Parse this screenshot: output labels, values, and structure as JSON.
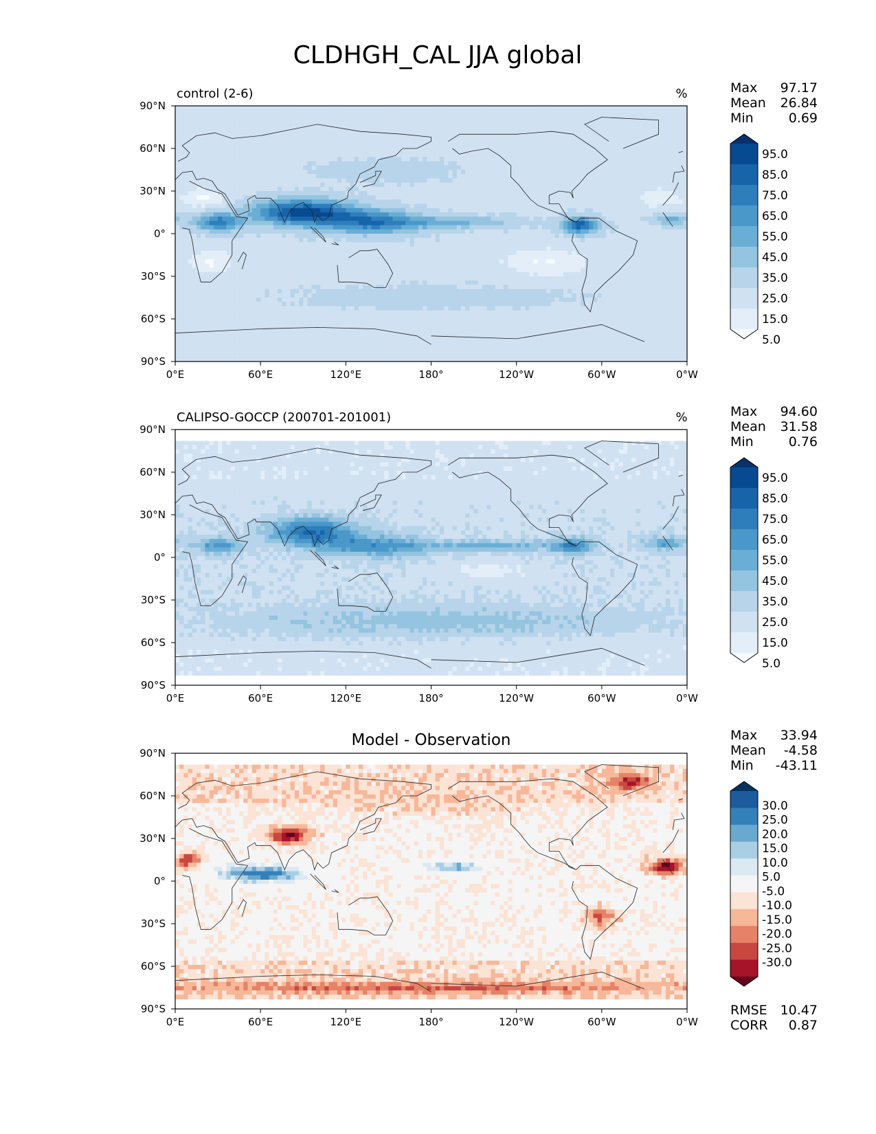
{
  "figure": {
    "title": "CLDHGH_CAL JJA global"
  },
  "axis_ticks": {
    "x": [
      "0°E",
      "60°E",
      "120°E",
      "180°",
      "120°W",
      "60°W",
      "0°W"
    ],
    "y": [
      "90°N",
      "60°N",
      "30°N",
      "0°",
      "30°S",
      "60°S",
      "90°S"
    ]
  },
  "colors": {
    "blues": [
      "#f7fbff",
      "#e3eef9",
      "#d0e1f2",
      "#b7d4ea",
      "#94c4df",
      "#6aaed6",
      "#4a98c9",
      "#2e7ebc",
      "#1764ab",
      "#084a91",
      "#08306b"
    ],
    "diff": [
      "#67001f",
      "#a51429",
      "#c94741",
      "#e58267",
      "#f7b799",
      "#fbe3d5",
      "#f5f5f5",
      "#dbe9f2",
      "#a9cfe5",
      "#69a8cf",
      "#3480b9",
      "#1b5b9e",
      "#053061"
    ]
  },
  "panels": [
    {
      "title_left": "control (2-6)",
      "title_center": "",
      "units": "%",
      "stats": [
        {
          "label": "Max",
          "value": "97.17"
        },
        {
          "label": "Mean",
          "value": "26.84"
        },
        {
          "label": "Min",
          "value": "0.69"
        }
      ],
      "colorbar_labels": [
        "95.0",
        "85.0",
        "75.0",
        "65.0",
        "55.0",
        "45.0",
        "35.0",
        "25.0",
        "15.0",
        "5.0"
      ],
      "lat_extent": [
        -90,
        90
      ]
    },
    {
      "title_left": "CALIPSO-GOCCP (200701-201001)",
      "title_center": "",
      "units": "%",
      "stats": [
        {
          "label": "Max",
          "value": "94.60"
        },
        {
          "label": "Mean",
          "value": "31.58"
        },
        {
          "label": "Min",
          "value": "0.76"
        }
      ],
      "colorbar_labels": [
        "95.0",
        "85.0",
        "75.0",
        "65.0",
        "55.0",
        "45.0",
        "35.0",
        "25.0",
        "15.0",
        "5.0"
      ],
      "lat_extent": [
        -82,
        82
      ]
    },
    {
      "title_left": "",
      "title_center": "Model - Observation",
      "units": "",
      "stats": [
        {
          "label": "Max",
          "value": "33.94"
        },
        {
          "label": "Mean",
          "value": "-4.58"
        },
        {
          "label": "Min",
          "value": "-43.11"
        }
      ],
      "colorbar_labels": [
        "30.0",
        "25.0",
        "20.0",
        "15.0",
        "10.0",
        "5.0",
        "-5.0",
        "-10.0",
        "-15.0",
        "-20.0",
        "-25.0",
        "-30.0"
      ],
      "lat_extent": [
        -82,
        82
      ],
      "footer_stats": [
        {
          "label": "RMSE",
          "value": "10.47"
        },
        {
          "label": "CORR",
          "value": "0.87"
        }
      ]
    }
  ],
  "chart_data": [
    {
      "type": "heatmap",
      "title": "control (2-6)",
      "units": "%",
      "xlim": [
        0,
        360
      ],
      "ylim": [
        -90,
        90
      ],
      "levels": [
        5,
        15,
        25,
        35,
        45,
        55,
        65,
        75,
        85,
        95
      ],
      "stats": {
        "max": 97.17,
        "mean": 26.84,
        "min": 0.69
      },
      "features": [
        {
          "lon": 90,
          "lat": 15,
          "value": 90,
          "lon_width": 35,
          "lat_width": 9
        },
        {
          "lon": 30,
          "lat": 8,
          "value": 70,
          "lon_width": 16,
          "lat_width": 6
        },
        {
          "lon": 140,
          "lat": 8,
          "value": 70,
          "lon_width": 35,
          "lat_width": 8
        },
        {
          "lon": 200,
          "lat": 8,
          "value": 45,
          "lon_width": 40,
          "lat_width": 4
        },
        {
          "lon": 285,
          "lat": 6,
          "value": 80,
          "lon_width": 12,
          "lat_width": 6
        },
        {
          "lon": 350,
          "lat": 10,
          "value": 50,
          "lon_width": 12,
          "lat_width": 4
        },
        {
          "lon": 180,
          "lat": -45,
          "value": 30,
          "lon_width": 120,
          "lat_width": 10
        },
        {
          "lon": 150,
          "lat": 45,
          "value": 30,
          "lon_width": 60,
          "lat_width": 10
        },
        {
          "lon": 25,
          "lat": -20,
          "value": 3,
          "lon_width": 15,
          "lat_width": 8
        },
        {
          "lon": 260,
          "lat": -20,
          "value": 5,
          "lon_width": 30,
          "lat_width": 10
        },
        {
          "lon": 20,
          "lat": 25,
          "value": 4,
          "lon_width": 15,
          "lat_width": 7
        },
        {
          "lon": 340,
          "lat": 25,
          "value": 6,
          "lon_width": 15,
          "lat_width": 7
        }
      ]
    },
    {
      "type": "heatmap",
      "title": "CALIPSO-GOCCP (200701-201001)",
      "units": "%",
      "xlim": [
        0,
        360
      ],
      "ylim": [
        -90,
        90
      ],
      "levels": [
        5,
        15,
        25,
        35,
        45,
        55,
        65,
        75,
        85,
        95
      ],
      "stats": {
        "max": 94.6,
        "mean": 31.58,
        "min": 0.76
      },
      "features": [
        {
          "lon": 95,
          "lat": 18,
          "value": 75,
          "lon_width": 30,
          "lat_width": 10
        },
        {
          "lon": 30,
          "lat": 8,
          "value": 60,
          "lon_width": 16,
          "lat_width": 6
        },
        {
          "lon": 140,
          "lat": 8,
          "value": 60,
          "lon_width": 35,
          "lat_width": 8
        },
        {
          "lon": 220,
          "lat": 8,
          "value": 50,
          "lon_width": 50,
          "lat_width": 4
        },
        {
          "lon": 280,
          "lat": 8,
          "value": 60,
          "lon_width": 15,
          "lat_width": 6
        },
        {
          "lon": 345,
          "lat": 10,
          "value": 55,
          "lon_width": 15,
          "lat_width": 5
        },
        {
          "lon": 180,
          "lat": -45,
          "value": 40,
          "lon_width": 150,
          "lat_width": 12
        },
        {
          "lon": 220,
          "lat": -10,
          "value": 10,
          "lon_width": 30,
          "lat_width": 6
        }
      ]
    },
    {
      "type": "heatmap",
      "title": "Model - Observation",
      "units": "%",
      "xlim": [
        0,
        360
      ],
      "ylim": [
        -90,
        90
      ],
      "levels": [
        -30,
        -25,
        -20,
        -15,
        -10,
        -5,
        5,
        10,
        15,
        20,
        25,
        30
      ],
      "stats": {
        "max": 33.94,
        "mean": -4.58,
        "min": -43.11,
        "rmse": 10.47,
        "corr": 0.87
      },
      "features": [
        {
          "lon": 80,
          "lat": 32,
          "value": -30,
          "lon_width": 15,
          "lat_width": 6
        },
        {
          "lon": 60,
          "lat": 5,
          "value": 25,
          "lon_width": 30,
          "lat_width": 6
        },
        {
          "lon": 195,
          "lat": 10,
          "value": 15,
          "lon_width": 20,
          "lat_width": 4
        },
        {
          "lon": 345,
          "lat": 10,
          "value": -30,
          "lon_width": 12,
          "lat_width": 6
        },
        {
          "lon": 300,
          "lat": -25,
          "value": -20,
          "lon_width": 12,
          "lat_width": 8
        },
        {
          "lon": 320,
          "lat": 70,
          "value": -25,
          "lon_width": 15,
          "lat_width": 6
        },
        {
          "lon": 180,
          "lat": -75,
          "value": -20,
          "lon_width": 180,
          "lat_width": 4
        },
        {
          "lon": 180,
          "lat": 55,
          "value": -10,
          "lon_width": 100,
          "lat_width": 10
        },
        {
          "lon": 10,
          "lat": 15,
          "value": -25,
          "lon_width": 8,
          "lat_width": 5
        }
      ]
    }
  ]
}
